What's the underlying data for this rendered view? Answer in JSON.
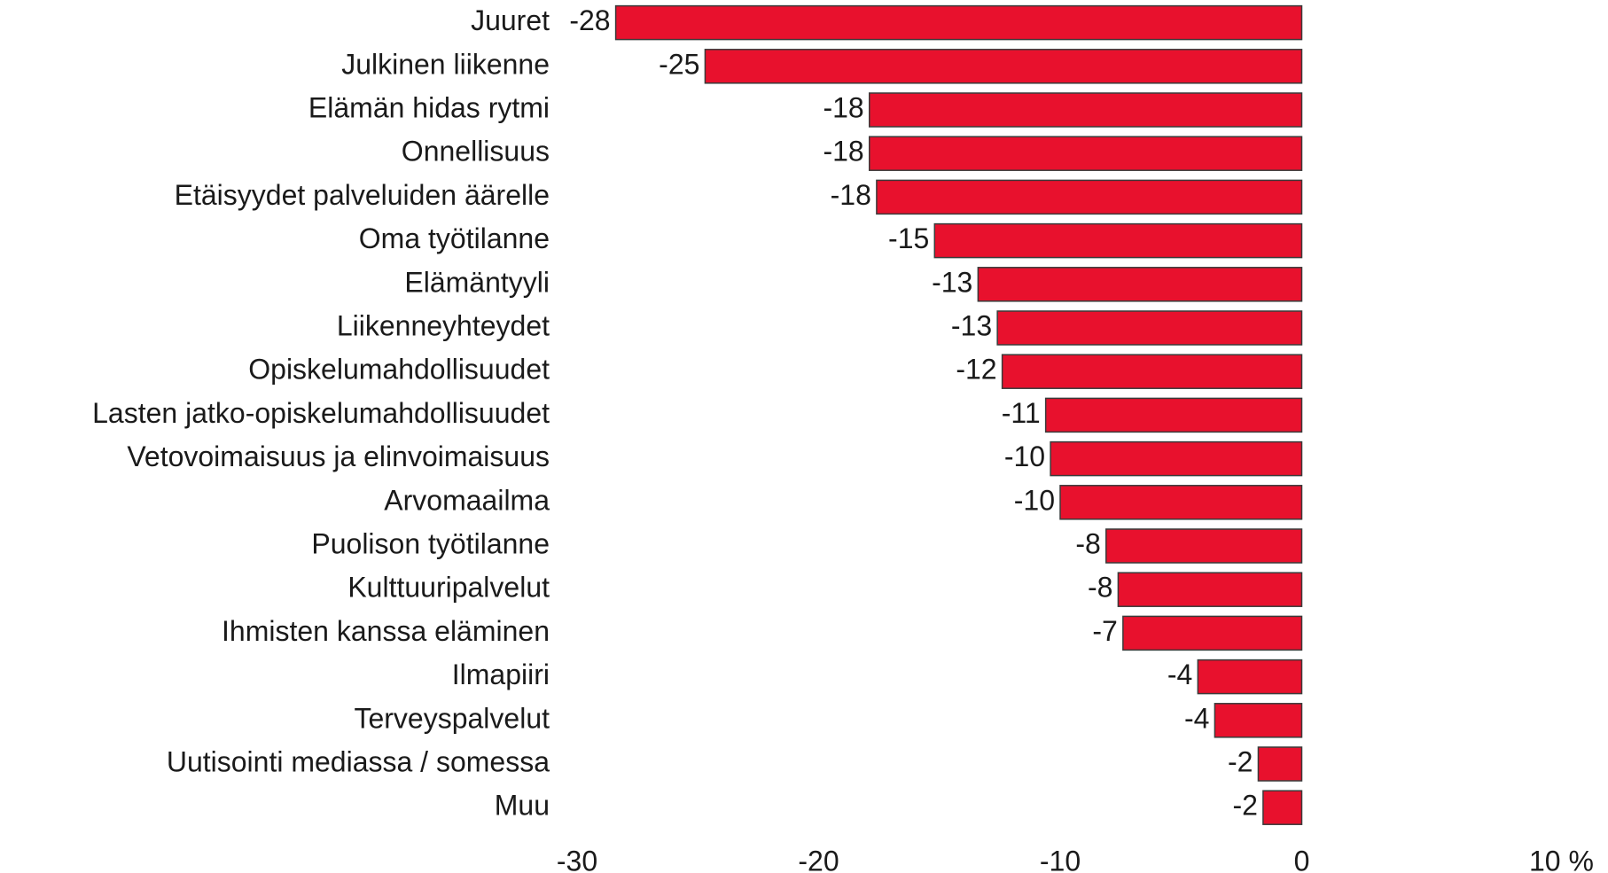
{
  "chart_data": {
    "type": "bar",
    "orientation": "horizontal",
    "categories": [
      "Juuret",
      "Julkinen liikenne",
      "Elämän hidas rytmi",
      "Onnellisuus",
      "Etäisyydet palveluiden äärelle",
      "Oma työtilanne",
      "Elämäntyyli",
      "Liikenneyhteydet",
      "Opiskelumahdollisuudet",
      "Lasten jatko-opiskelumahdollisuudet",
      "Vetovoimaisuus ja elinvoimaisuus",
      "Arvomaailma",
      "Puolison työtilanne",
      "Kulttuuripalvelut",
      "Ihmisten kanssa eläminen",
      "Ilmapiiri",
      "Terveyspalvelut",
      "Uutisointi mediassa / somessa",
      "Muu"
    ],
    "values": [
      -28.4,
      -24.7,
      -17.9,
      -17.9,
      -17.6,
      -15.2,
      -13.4,
      -12.6,
      -12.4,
      -10.6,
      -10.4,
      -10.0,
      -8.1,
      -7.6,
      -7.4,
      -4.3,
      -3.6,
      -1.8,
      -1.6
    ],
    "value_labels": [
      "-28",
      "-25",
      "-18",
      "-18",
      "-18",
      "-15",
      "-13",
      "-13",
      "-12",
      "-11",
      "-10",
      "-10",
      "-8",
      "-8",
      "-7",
      "-4",
      "-4",
      "-2",
      "-2"
    ],
    "color": "#e8112d",
    "xlim": [
      -30,
      10
    ],
    "xticks": [
      -30,
      -20,
      -10,
      0,
      {
        "value": 10,
        "label": "10 %"
      }
    ],
    "grid": false
  }
}
